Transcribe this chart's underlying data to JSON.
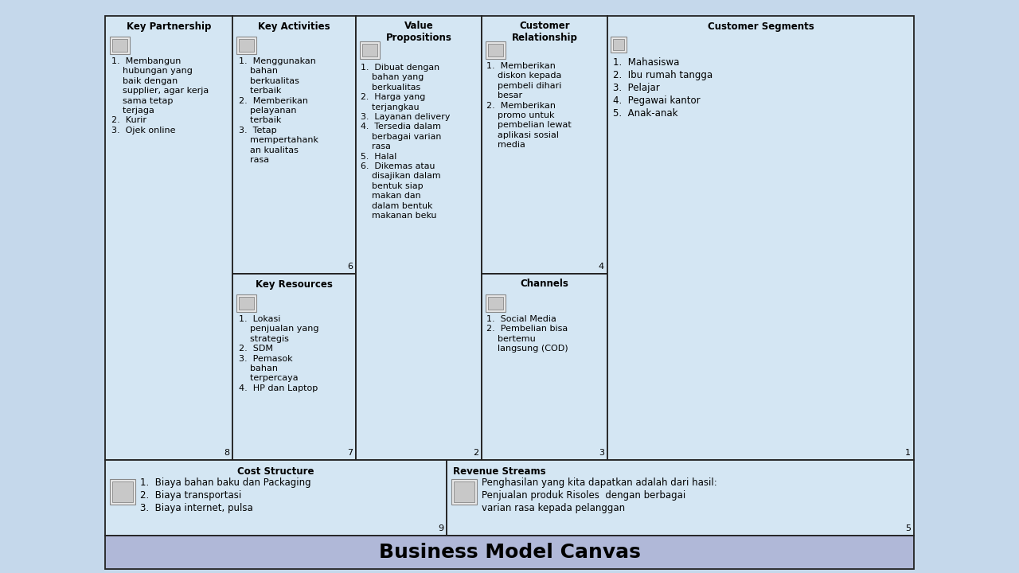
{
  "title": "Business Model Canvas",
  "bg_color": "#c5d8eb",
  "cell_bg": "#d4e6f3",
  "border_color": "#222222",
  "footer_bg": "#b0b8d8",
  "cells": {
    "key_partnership": {
      "header": "Key Partnership",
      "number": "8",
      "content": "1.  Membangun\n    hubungan yang\n    baik dengan\n    supplier, agar kerja\n    sama tetap\n    terjaga\n2.  Kurir\n3.  Ojek online"
    },
    "key_activities": {
      "header": "Key Activities",
      "number": "6",
      "content": "1.  Menggunakan\n    bahan\n    berkualitas\n    terbaik\n2.  Memberikan\n    pelayanan\n    terbaik\n3.  Tetap\n    mempertahank\n    an kualitas\n    rasa"
    },
    "key_resources": {
      "header": "Key Resources",
      "number": "7",
      "content": "1.  Lokasi\n    penjualan yang\n    strategis\n2.  SDM\n3.  Pemasok\n    bahan\n    terpercaya\n4.  HP dan Laptop"
    },
    "value_propositions": {
      "header": "Value\nPropositions",
      "number": "2",
      "content": "1.  Dibuat dengan\n    bahan yang\n    berkualitas\n2.  Harga yang\n    terjangkau\n3.  Layanan delivery\n4.  Tersedia dalam\n    berbagai varian\n    rasa\n5.  Halal\n6.  Dikemas atau\n    disajikan dalam\n    bentuk siap\n    makan dan\n    dalam bentuk\n    makanan beku"
    },
    "customer_relationship": {
      "header": "Customer\nRelationship",
      "number": "4",
      "content": "1.  Memberikan\n    diskon kepada\n    pembeli dihari\n    besar\n2.  Memberikan\n    promo untuk\n    pembelian lewat\n    aplikasi sosial\n    media"
    },
    "channels": {
      "header": "Channels",
      "number": "3",
      "content": "1.  Social Media\n2.  Pembelian bisa\n    bertemu\n    langsung (COD)"
    },
    "customer_segments": {
      "header": "Customer Segments",
      "number": "1",
      "content": "1.  Mahasiswa\n2.  Ibu rumah tangga\n3.  Pelajar\n4.  Pegawai kantor\n5.  Anak-anak"
    },
    "cost_structure": {
      "header": "Cost Structure",
      "number": "9",
      "content": "1.  Biaya bahan baku dan Packaging\n2.  Biaya transportasi\n3.  Biaya internet, pulsa"
    },
    "revenue_streams": {
      "header": "Revenue Streams",
      "number": "5",
      "content": "Penghasilan yang kita dapatkan adalah dari hasil:\nPenjualan produk Risoles  dengan berbagai\nvarian rasa kepada pelanggan"
    }
  }
}
